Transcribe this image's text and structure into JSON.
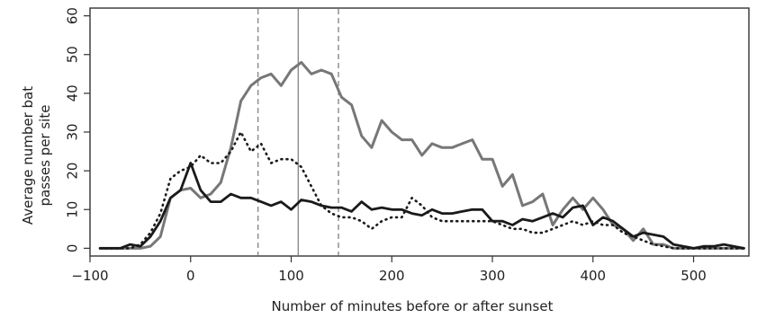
{
  "chart_data": {
    "type": "line",
    "title": "",
    "xlabel": "Number of minutes before or after sunset",
    "ylabel_lines": [
      "Average number bat",
      "passes per site"
    ],
    "xlim": [
      -100,
      555
    ],
    "ylim": [
      -2,
      62
    ],
    "x_ticks": [
      -100,
      0,
      100,
      200,
      300,
      400,
      500
    ],
    "x_tick_labels": [
      "−100",
      "0",
      "100",
      "200",
      "300",
      "400",
      "500"
    ],
    "y_ticks": [
      0,
      10,
      20,
      30,
      40,
      50,
      60
    ],
    "y_tick_labels": [
      "0",
      "10",
      "20",
      "30",
      "40",
      "50",
      "60"
    ],
    "grid": false,
    "legend": "none",
    "colors": {
      "gray": "#777777",
      "black": "#1a1a1a",
      "dotted": "#1a1a1a",
      "ref": "#8a8a8a"
    },
    "vertical_lines": [
      {
        "x": 67,
        "style": "dashed"
      },
      {
        "x": 107,
        "style": "solid"
      },
      {
        "x": 147,
        "style": "dashed"
      }
    ],
    "series": [
      {
        "style": "solid-gray",
        "x": [
          -90,
          -80,
          -70,
          -60,
          -50,
          -40,
          -30,
          -20,
          -10,
          0,
          10,
          20,
          30,
          40,
          50,
          60,
          70,
          80,
          90,
          100,
          110,
          120,
          130,
          140,
          150,
          160,
          170,
          180,
          190,
          200,
          210,
          220,
          230,
          240,
          250,
          260,
          270,
          280,
          290,
          300,
          310,
          320,
          330,
          340,
          350,
          360,
          370,
          380,
          390,
          400,
          410,
          420,
          430,
          440,
          450,
          460,
          470,
          480,
          490,
          500,
          510,
          520,
          530,
          540,
          550
        ],
        "y": [
          0,
          0,
          0,
          0,
          0,
          0.5,
          3,
          13,
          15,
          15.5,
          13,
          14,
          17,
          26,
          38,
          42,
          44,
          45,
          42,
          46,
          48,
          45,
          46,
          45,
          39,
          37,
          29,
          26,
          33,
          30,
          28,
          28,
          24,
          27,
          26,
          26,
          27,
          28,
          23,
          23,
          16,
          19,
          11,
          12,
          14,
          6,
          10,
          13,
          10,
          13,
          10,
          6,
          5,
          2,
          5,
          1,
          1,
          0,
          0,
          0,
          0,
          0,
          0,
          0,
          0
        ]
      },
      {
        "style": "solid-black",
        "x": [
          -90,
          -80,
          -70,
          -60,
          -50,
          -40,
          -30,
          -20,
          -10,
          0,
          10,
          20,
          30,
          40,
          50,
          60,
          70,
          80,
          90,
          100,
          110,
          120,
          130,
          140,
          150,
          160,
          170,
          180,
          190,
          200,
          210,
          220,
          230,
          240,
          250,
          260,
          270,
          280,
          290,
          300,
          310,
          320,
          330,
          340,
          350,
          360,
          370,
          380,
          390,
          400,
          410,
          420,
          430,
          440,
          450,
          460,
          470,
          480,
          490,
          500,
          510,
          520,
          530,
          540,
          550
        ],
        "y": [
          0,
          0,
          0,
          1,
          0.5,
          3,
          7,
          13,
          15,
          22,
          15,
          12,
          12,
          14,
          13,
          13,
          12,
          11,
          12,
          10,
          12.5,
          12,
          11,
          10.5,
          10.5,
          9.5,
          12,
          10,
          10.5,
          10,
          10,
          9,
          8.5,
          10,
          9,
          9,
          9.5,
          10,
          10,
          7,
          7,
          6,
          7.5,
          7,
          8,
          9,
          8,
          10.5,
          11,
          6,
          8,
          7,
          5,
          3,
          4,
          3.5,
          3,
          1,
          0.5,
          0,
          0.5,
          0.5,
          1,
          0.5,
          0
        ]
      },
      {
        "style": "dotted-black",
        "x": [
          -90,
          -80,
          -70,
          -60,
          -50,
          -40,
          -30,
          -20,
          -10,
          0,
          10,
          20,
          30,
          40,
          50,
          60,
          70,
          80,
          90,
          100,
          110,
          120,
          130,
          140,
          150,
          160,
          170,
          180,
          190,
          200,
          210,
          220,
          230,
          240,
          250,
          260,
          270,
          280,
          290,
          300,
          310,
          320,
          330,
          340,
          350,
          360,
          370,
          380,
          390,
          400,
          410,
          420,
          430,
          440,
          450,
          460,
          470,
          480,
          490,
          500,
          510,
          520,
          530,
          540,
          550
        ],
        "y": [
          0,
          0,
          0,
          0,
          1,
          4,
          9,
          18,
          20,
          21,
          24,
          22,
          22,
          25,
          30,
          25,
          27,
          22,
          23,
          23,
          21,
          16,
          11,
          9,
          8,
          8,
          7,
          5,
          7,
          8,
          8,
          13,
          11,
          8,
          7,
          7,
          7,
          7,
          7,
          7,
          6,
          5,
          5,
          4,
          4,
          5,
          6,
          7,
          6,
          7,
          6,
          6,
          4,
          3,
          2,
          1,
          0.5,
          0,
          0,
          0,
          0,
          0,
          0,
          0,
          0
        ]
      }
    ]
  }
}
